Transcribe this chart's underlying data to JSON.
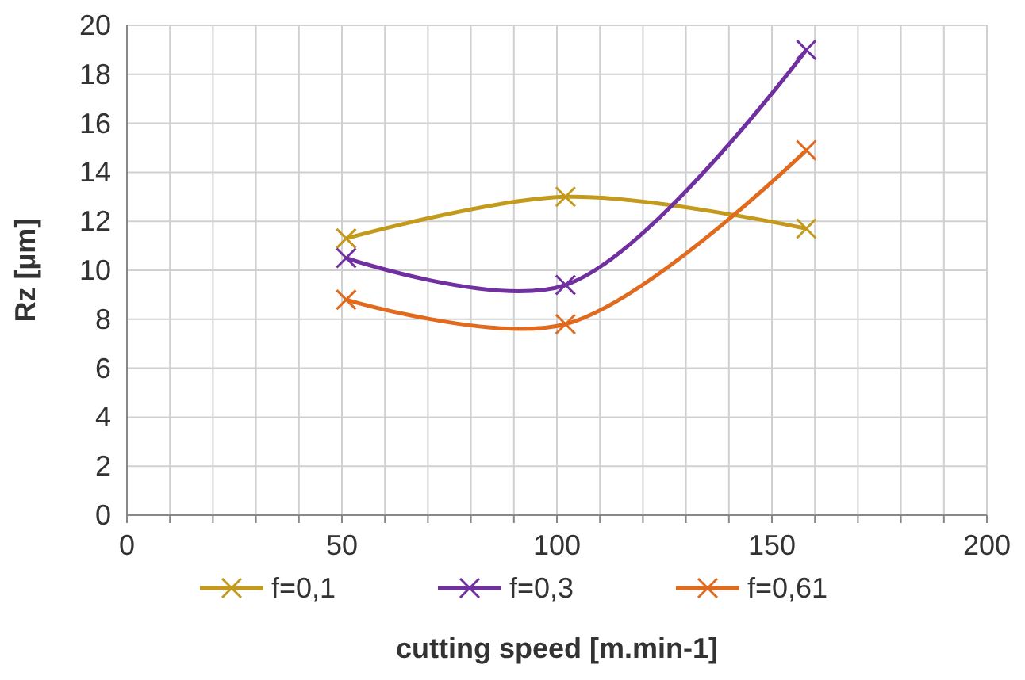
{
  "chart_data": {
    "type": "line",
    "xlabel": "cutting speed [m.min-1]",
    "ylabel": "Rz [µm]",
    "xlim": [
      0,
      200
    ],
    "ylim": [
      0,
      20
    ],
    "xticks": [
      0,
      {
        "value": 10,
        "label": null
      },
      {
        "value": 20,
        "label": null
      },
      {
        "value": 30,
        "label": null
      },
      {
        "value": 40,
        "label": null
      },
      50,
      {
        "value": 60,
        "label": null
      },
      {
        "value": 70,
        "label": null
      },
      {
        "value": 80,
        "label": null
      },
      {
        "value": 90,
        "label": null
      },
      100,
      {
        "value": 110,
        "label": null
      },
      {
        "value": 120,
        "label": null
      },
      {
        "value": 130,
        "label": null
      },
      {
        "value": 140,
        "label": null
      },
      150,
      {
        "value": 160,
        "label": null
      },
      {
        "value": 170,
        "label": null
      },
      {
        "value": 180,
        "label": null
      },
      {
        "value": 190,
        "label": null
      },
      200
    ],
    "yticks": [
      0,
      2,
      4,
      6,
      8,
      10,
      12,
      14,
      16,
      18,
      20
    ],
    "grid": true,
    "legend": "bottom",
    "marker": "cross",
    "line_style": "solid",
    "x": [
      51,
      102,
      158
    ],
    "series": [
      {
        "name": "f=0,1",
        "color": "#c49a1c",
        "values": [
          11.3,
          13,
          11.7
        ]
      },
      {
        "name": "f=0,3",
        "color": "#7030a0",
        "values": [
          10.5,
          9.4,
          19
        ]
      },
      {
        "name": "f=0,61",
        "color": "#e06a1e",
        "values": [
          8.8,
          7.8,
          14.9
        ]
      }
    ]
  }
}
